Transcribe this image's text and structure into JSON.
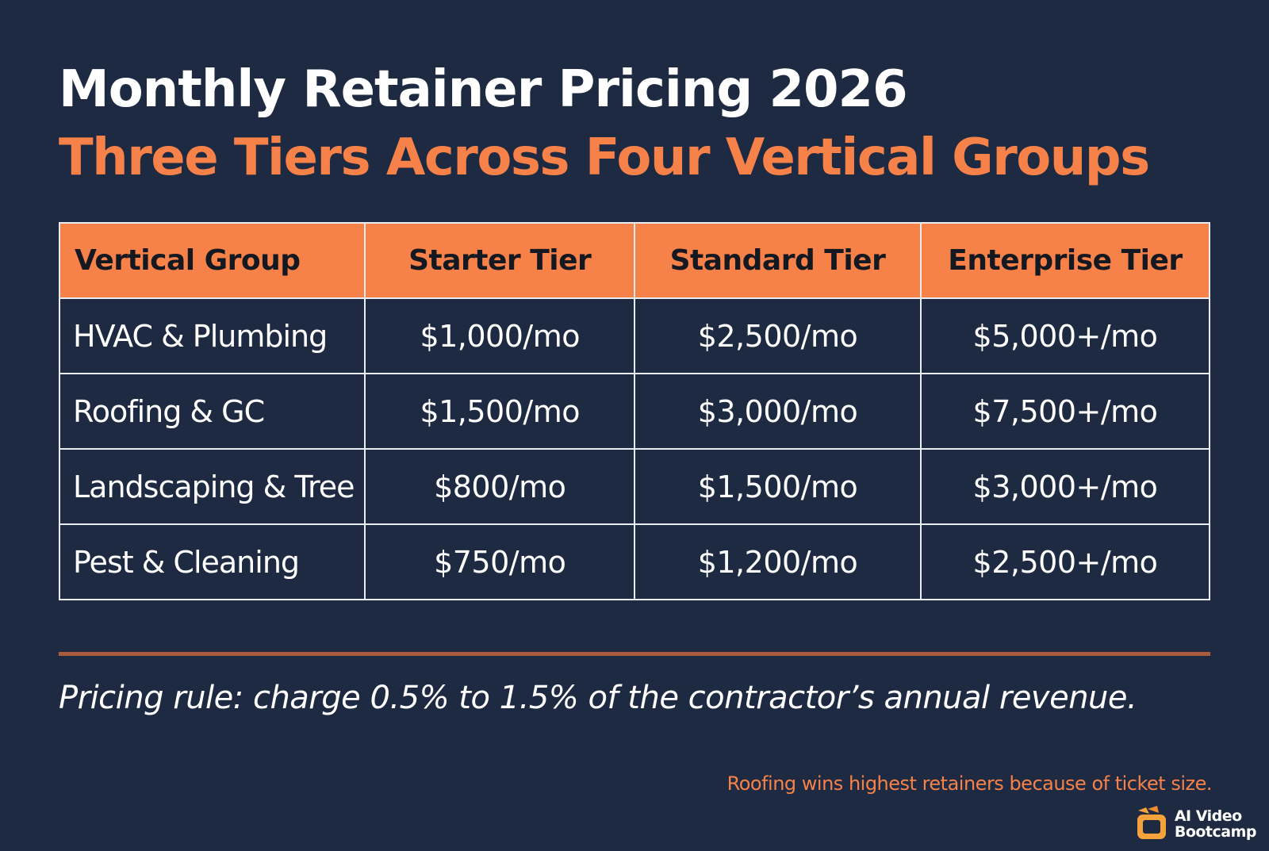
{
  "header": {
    "title": "Monthly Retainer Pricing 2026",
    "subtitle": "Three Tiers Across Four Vertical Groups"
  },
  "table": {
    "columns": [
      "Vertical Group",
      "Starter Tier",
      "Standard Tier",
      "Enterprise Tier"
    ],
    "rows": [
      {
        "group": "HVAC & Plumbing",
        "starter": "$1,000/mo",
        "standard": "$2,500/mo",
        "enterprise": "$5,000+/mo"
      },
      {
        "group": "Roofing & GC",
        "starter": "$1,500/mo",
        "standard": "$3,000/mo",
        "enterprise": "$7,500+/mo"
      },
      {
        "group": "Landscaping & Tree",
        "starter": "$800/mo",
        "standard": "$1,500/mo",
        "enterprise": "$3,000+/mo"
      },
      {
        "group": "Pest & Cleaning",
        "starter": "$750/mo",
        "standard": "$1,200/mo",
        "enterprise": "$2,500+/mo"
      }
    ]
  },
  "footer": {
    "pricing_rule": "Pricing rule: charge 0.5% to 1.5% of the contractor’s annual revenue.",
    "note": "Roofing wins highest retainers because of ticket size."
  },
  "logo": {
    "line1": "AI Video",
    "line2": "Bootcamp",
    "icon": "play-screen-logo-icon"
  },
  "colors": {
    "background": "#1d2a41",
    "accent": "#f6824a",
    "divider": "#a95b40",
    "text": "#ffffff"
  }
}
